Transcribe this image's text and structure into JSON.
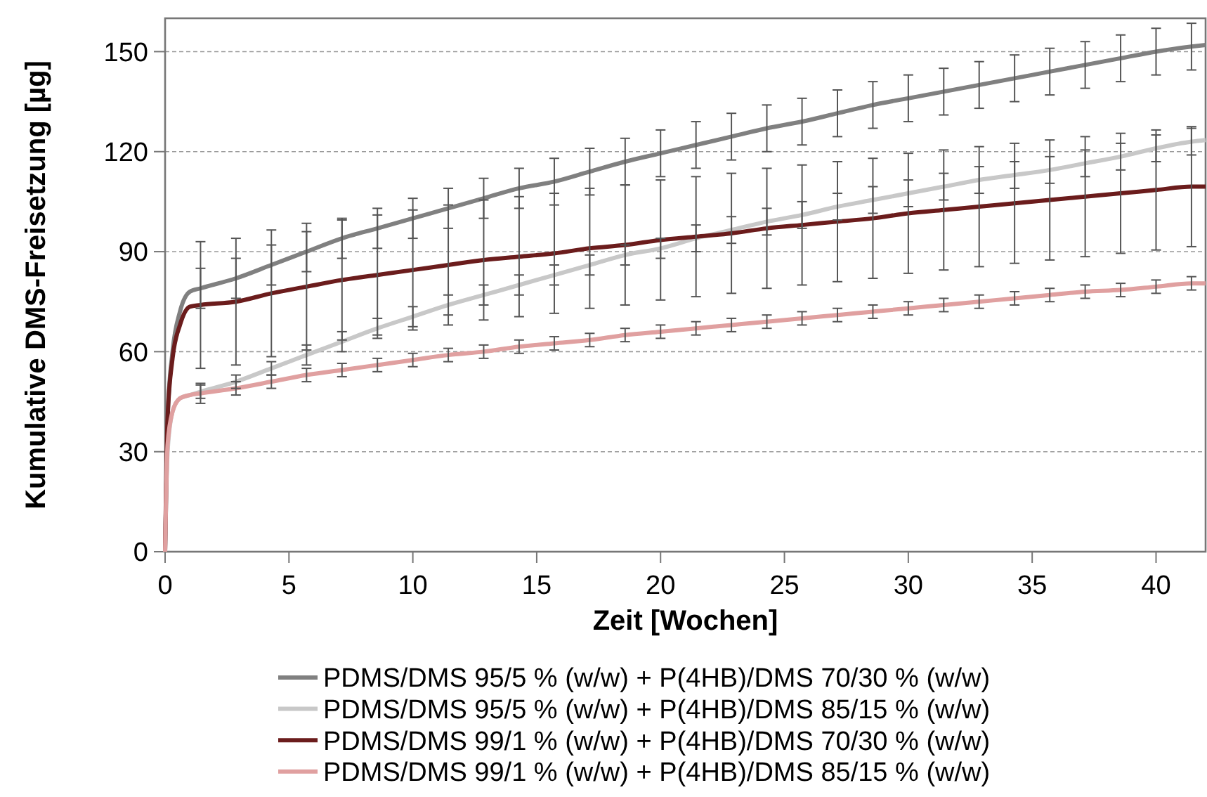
{
  "chart_data": {
    "type": "line",
    "xlabel": "Zeit [Wochen]",
    "ylabel": "Kumulative DMS-Freisetzung [µg]",
    "x": [
      0,
      0.1,
      0.3,
      0.6,
      1,
      1.43,
      2.86,
      4.29,
      5.71,
      7.14,
      8.57,
      10,
      11.43,
      12.86,
      14.29,
      15.71,
      17.14,
      18.57,
      20,
      21.43,
      22.86,
      24.29,
      25.71,
      27.14,
      28.57,
      30,
      31.43,
      32.86,
      34.29,
      35.71,
      37.14,
      38.57,
      40,
      41.43,
      42
    ],
    "series": [
      {
        "name": "PDMS/DMS 95/5 % (w/w) + P(4HB)/DMS 70/30 % (w/w)",
        "color": "#808080",
        "values": [
          0,
          40,
          60,
          72,
          78,
          79,
          82,
          86,
          90,
          94,
          97,
          100,
          103,
          106,
          109,
          111,
          114,
          117,
          119.5,
          122,
          124.5,
          127,
          129,
          131.5,
          134,
          136,
          138,
          140,
          142,
          144,
          146,
          148,
          150,
          151.5,
          152
        ],
        "errors": [
          null,
          null,
          null,
          null,
          null,
          6,
          6,
          6,
          6,
          6,
          6,
          6,
          6,
          6,
          6,
          7,
          7,
          7,
          7,
          7,
          7,
          7,
          7,
          7,
          7,
          7,
          7,
          7,
          7,
          7,
          7,
          7,
          7,
          7,
          null
        ]
      },
      {
        "name": "PDMS/DMS 95/5 % (w/w) + P(4HB)/DMS 85/15 % (w/w)",
        "color": "#c8c8c8",
        "values": [
          0,
          30,
          42,
          46,
          47,
          48,
          51,
          55,
          59,
          63,
          67,
          70.5,
          74,
          77,
          80,
          83,
          86,
          89,
          91,
          94,
          96.5,
          99,
          101,
          103.5,
          105.5,
          107.5,
          109.5,
          111.5,
          113,
          114.5,
          116.5,
          118.5,
          121,
          123,
          123.5
        ],
        "errors": [
          null,
          null,
          null,
          null,
          null,
          2,
          2,
          2,
          3,
          3,
          3,
          3,
          3,
          3,
          3,
          3,
          3,
          3,
          3,
          4,
          4,
          4,
          4,
          4,
          4,
          4,
          4,
          4,
          4,
          4,
          4,
          4,
          4,
          4,
          null
        ]
      },
      {
        "name": "PDMS/DMS 99/1 % (w/w) + P(4HB)/DMS 70/30 % (w/w)",
        "color": "#6b1c1c",
        "values": [
          0,
          40,
          58,
          68,
          73.5,
          74,
          75,
          77.5,
          79.5,
          81.5,
          83,
          84.5,
          86,
          87.5,
          88.5,
          89.5,
          91,
          92,
          93.5,
          94.5,
          95.5,
          97,
          98,
          99,
          100,
          101.5,
          102.5,
          103.5,
          104.5,
          105.5,
          106.5,
          107.5,
          108.5,
          109.5,
          109.5
        ],
        "errors": [
          null,
          null,
          null,
          null,
          null,
          19,
          19,
          19,
          19,
          18,
          18,
          18,
          18,
          18,
          18,
          18,
          18,
          18,
          18,
          18,
          18,
          18,
          18,
          18,
          18,
          18,
          18,
          18,
          18,
          18,
          18,
          18,
          18,
          18,
          null
        ]
      },
      {
        "name": "PDMS/DMS 99/1 % (w/w) + P(4HB)/DMS 85/15 % (w/w)",
        "color": "#e0a0a0",
        "values": [
          0,
          32,
          42,
          46,
          47,
          47.5,
          49,
          51,
          53,
          54.5,
          56,
          57.5,
          59,
          60,
          61.5,
          62.5,
          63.5,
          65,
          66,
          67,
          68,
          69,
          70,
          71,
          72,
          73,
          74,
          75,
          76,
          77,
          78,
          78.5,
          79.5,
          80.5,
          80.5
        ],
        "errors": [
          null,
          null,
          null,
          null,
          null,
          3,
          2,
          2,
          2,
          2,
          2,
          2,
          2,
          2,
          2,
          2,
          2,
          2,
          2,
          2,
          2,
          2,
          2,
          2,
          2,
          2,
          2,
          2,
          2,
          2,
          2,
          2,
          2,
          2,
          null
        ]
      }
    ],
    "xlim": [
      0,
      42
    ],
    "xticks": [
      0,
      5,
      10,
      15,
      20,
      25,
      30,
      35,
      40
    ],
    "ylim": [
      0,
      160
    ],
    "yticks": [
      0,
      30,
      60,
      90,
      120,
      150
    ],
    "grid": "y",
    "legend": "bottom",
    "line_style": "solid",
    "marker": "none"
  }
}
